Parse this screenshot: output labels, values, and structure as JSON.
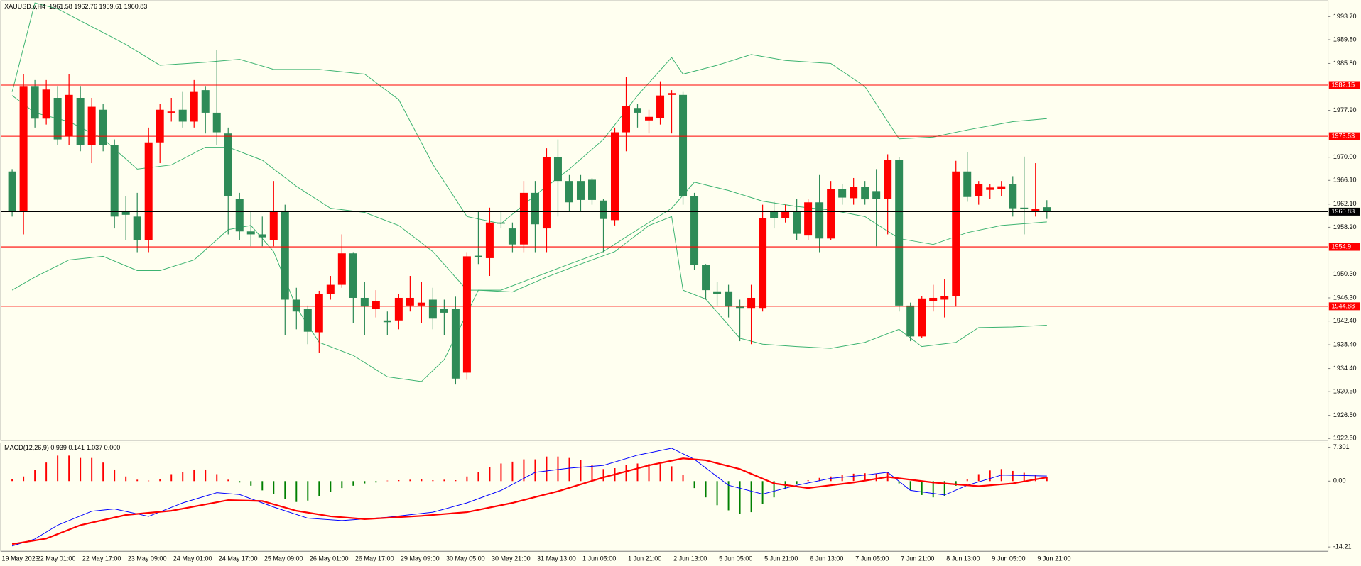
{
  "chart_data": [
    {
      "type": "candlestick",
      "label": "XAUUSD.v,H4  1961.58 1962.76 1959.61 1960.83",
      "categories": [
        "19 May 2023",
        null,
        null,
        "22 May 01:00",
        null,
        null,
        null,
        "22 May 17:00",
        null,
        null,
        null,
        "23 May 09:00",
        null,
        null,
        null,
        "24 May 01:00",
        null,
        null,
        null,
        "24 May 17:00",
        null,
        null,
        null,
        "25 May 09:00",
        null,
        null,
        null,
        "26 May 01:00",
        null,
        null,
        null,
        "26 May 17:00",
        null,
        null,
        null,
        "29 May 09:00",
        null,
        null,
        null,
        "30 May 05:00",
        null,
        null,
        null,
        "30 May 21:00",
        null,
        null,
        null,
        "31 May 13:00",
        null,
        null,
        null,
        "1 Jun 05:00",
        null,
        null,
        null,
        "1 Jun 21:00",
        null,
        null,
        null,
        "2 Jun 13:00",
        null,
        null,
        null,
        "5 Jun 05:00",
        null,
        null,
        null,
        "5 Jun 21:00",
        null,
        null,
        null,
        "6 Jun 13:00",
        null,
        null,
        null,
        "7 Jun 05:00",
        null,
        null,
        null,
        "7 Jun 21:00",
        null,
        null,
        null,
        "8 Jun 13:00",
        null,
        null,
        null,
        "9 Jun 05:00",
        null,
        null,
        null,
        "9 Jun 21:00"
      ],
      "open": [
        1967.6,
        1961,
        1982,
        1976.5,
        1980,
        1973.5,
        1980,
        1972,
        1978,
        1972,
        1960.8,
        1960,
        1956,
        1972.5,
        1977.5,
        1978,
        1976,
        1981.3,
        1977.5,
        1974,
        1963,
        1957.5,
        1957,
        1956,
        1961,
        1946,
        1944.5,
        1940.5,
        1947,
        1948.5,
        1953.8,
        1946.3,
        1944.5,
        1942.5,
        1942.5,
        1945,
        1945,
        1946,
        1944.5,
        1944.5,
        1933.7,
        1953.4,
        1953,
        1959,
        1958,
        1955.3,
        1964,
        1958,
        1970,
        1966,
        1966,
        1966.2,
        1962.7,
        1959.4,
        1974.2,
        1978.3,
        1976.2,
        1976.6,
        1980.5,
        1980.5,
        1963.4,
        1951.8,
        1947.4,
        1947.4,
        1944.8,
        1944.6,
        1944.6,
        1961,
        1959.7,
        1960.8,
        1956.8,
        1962.4,
        1956.3,
        1964.6,
        1963.1,
        1965,
        1964.3,
        1963,
        1969.5,
        1945,
        1939.8,
        1945.8,
        1946,
        1946.6,
        1967.6,
        1963.4,
        1964.5,
        1964.6,
        1965.5,
        1961.5,
        1960.9,
        1961.58
      ],
      "high": [
        1968,
        1984,
        1983,
        1983,
        1982,
        1984,
        1982,
        1980,
        1979,
        1973,
        1963.5,
        1964,
        1975,
        1979,
        1980,
        1981,
        1983,
        1982,
        1988,
        1975,
        1964,
        1961,
        1960,
        1966,
        1962,
        1948,
        1945,
        1947.5,
        1950,
        1957,
        1954,
        1949,
        1947.6,
        1944,
        1947,
        1950,
        1949,
        1948,
        1946,
        1946.5,
        1954,
        1961,
        1961.5,
        1961,
        1959,
        1966,
        1966,
        1971.5,
        1973,
        1967,
        1967,
        1966.5,
        1963,
        1975,
        1983.5,
        1979,
        1978,
        1982.8,
        1981.3,
        1981,
        1964,
        1952,
        1949,
        1948.5,
        1946,
        1948.5,
        1962,
        1962.5,
        1962,
        1963,
        1963,
        1967,
        1966,
        1965.5,
        1966.5,
        1966,
        1968,
        1970.5,
        1970,
        1945.5,
        1946.6,
        1948.5,
        1949.5,
        1969.4,
        1970.8,
        1966,
        1965.5,
        1966,
        1966.8,
        1970.1,
        1969,
        1962.76
      ],
      "low": [
        1960,
        1957,
        1975,
        1975.5,
        1972,
        1972,
        1971,
        1969,
        1971,
        1958,
        1956,
        1954,
        1954,
        1969,
        1976,
        1975,
        1975,
        1974,
        1972,
        1957,
        1956,
        1955,
        1955,
        1955,
        1940,
        1941,
        1938.5,
        1937,
        1946,
        1948,
        1942,
        1940,
        1943,
        1940,
        1941,
        1944,
        1942,
        1941,
        1940,
        1931.7,
        1932.5,
        1952,
        1950,
        1958,
        1954,
        1954,
        1954,
        1954,
        1960,
        1961,
        1961,
        1962,
        1954,
        1958.5,
        1971,
        1975,
        1974,
        1975.5,
        1974,
        1962,
        1951,
        1946,
        1945,
        1943,
        1939,
        1938.5,
        1944,
        1958,
        1959,
        1956,
        1956,
        1954,
        1956,
        1962,
        1962,
        1962,
        1955,
        1957,
        1944,
        1939,
        1939.5,
        1944,
        1943,
        1944.8,
        1962.5,
        1962,
        1963,
        1963.5,
        1960,
        1957,
        1960,
        1959.61
      ],
      "close": [
        1960.9,
        1982,
        1976.5,
        1981.4,
        1973,
        1980.5,
        1972,
        1978.5,
        1972,
        1960,
        1960.3,
        1956,
        1972.5,
        1978,
        1977.7,
        1976,
        1981,
        1977.5,
        1974.2,
        1963.5,
        1957.5,
        1957,
        1956.5,
        1961,
        1946,
        1944,
        1940.6,
        1947,
        1948.5,
        1953.8,
        1946.3,
        1944.8,
        1945.8,
        1942.2,
        1946.3,
        1946.3,
        1945.5,
        1942.8,
        1943.8,
        1932.7,
        1953.3,
        1953.2,
        1959,
        1958.8,
        1955.3,
        1964,
        1958.7,
        1970,
        1966,
        1962.4,
        1962.8,
        1962.8,
        1959.6,
        1974.2,
        1978.6,
        1977.5,
        1976.8,
        1980.4,
        1980.8,
        1963.4,
        1951.8,
        1947.6,
        1947,
        1944.8,
        1944.6,
        1946.3,
        1959.7,
        1959.7,
        1961,
        1957.1,
        1962.4,
        1956.3,
        1964.6,
        1963.2,
        1965,
        1962.9,
        1963,
        1969.5,
        1945,
        1939.8,
        1946.2,
        1946.3,
        1946.6,
        1967.6,
        1963.3,
        1965.5,
        1964.9,
        1965.1,
        1961.4,
        1961.3,
        1961.3,
        1960.83
      ],
      "up_color": "#ff0000",
      "down_color": "#2e8b57",
      "bands": [
        {
          "color": "#3cb371",
          "x": [
            0,
            2,
            4,
            7,
            10,
            13,
            17,
            20,
            23,
            27,
            31,
            34,
            37,
            40,
            43,
            46,
            49,
            52,
            55,
            58,
            59,
            62,
            65,
            68,
            72,
            75,
            78,
            81,
            84,
            88,
            91
          ],
          "values": [
            1981,
            1996,
            1995,
            1992,
            1989,
            1985.5,
            1986,
            1986.5,
            1984.8,
            1984.8,
            1984,
            1979.7,
            1968.8,
            1960,
            1958.8,
            1963.6,
            1968,
            1973,
            1980.4,
            1986.8,
            1984,
            1985.5,
            1987.3,
            1986.3,
            1985.8,
            1981.9,
            1973.1,
            1973.4,
            1974.6,
            1976,
            1976.5
          ]
        },
        {
          "color": "#3cb371",
          "x": [
            0,
            2,
            5,
            8,
            11,
            14,
            17,
            19,
            22,
            25,
            28,
            31,
            34,
            37,
            40,
            43,
            46,
            49,
            52,
            55,
            58,
            60,
            63,
            66,
            69,
            72,
            75,
            78,
            81,
            84,
            87,
            91
          ],
          "values": [
            1980.4,
            1977.5,
            1976,
            1973.1,
            1968,
            1968.7,
            1971.7,
            1971.7,
            1969.5,
            1965.1,
            1961.4,
            1960.7,
            1958.5,
            1954.1,
            1947.6,
            1947.6,
            1949.8,
            1952,
            1954.1,
            1957.8,
            1961.4,
            1965.8,
            1964.4,
            1962.6,
            1961.7,
            1961.1,
            1960,
            1956.3,
            1955.3,
            1957.3,
            1958.5,
            1959.1
          ]
        },
        {
          "color": "#3cb371",
          "x": [
            0,
            2,
            5,
            8,
            11,
            13,
            16,
            19,
            21,
            23,
            25,
            27,
            30,
            33,
            36,
            38,
            41,
            44,
            47,
            50,
            53,
            56,
            58,
            59,
            61,
            64,
            66,
            69,
            72,
            75,
            78,
            80,
            83,
            85,
            88,
            91
          ],
          "values": [
            1947.6,
            1949.8,
            1952.7,
            1953.3,
            1950.9,
            1950.9,
            1952.7,
            1957.8,
            1958.5,
            1954.1,
            1944.7,
            1938.8,
            1936.6,
            1933,
            1932.2,
            1935.9,
            1947.6,
            1947.3,
            1949.8,
            1952,
            1954.1,
            1958.5,
            1960,
            1947.6,
            1946.1,
            1939.5,
            1938.5,
            1938.1,
            1937.8,
            1938.8,
            1941,
            1938.1,
            1938.8,
            1941.3,
            1941.4,
            1941.7
          ]
        }
      ],
      "hlines": [
        {
          "value": 1982.15,
          "color": "#ff0000"
        },
        {
          "value": 1973.53,
          "color": "#ff0000"
        },
        {
          "value": 1954.9,
          "color": "#ff0000"
        },
        {
          "value": 1944.88,
          "color": "#ff0000"
        },
        {
          "value": 1960.83,
          "color": "#000000"
        }
      ],
      "ylim": [
        1922.3,
        1996.2
      ],
      "yticks": [
        {
          "value": 1993.7,
          "label": "1993.70"
        },
        {
          "value": 1989.8,
          "label": "1989.80"
        },
        {
          "value": 1985.8,
          "label": "1985.80"
        },
        {
          "value": 1977.9,
          "label": "1977.90"
        },
        {
          "value": 1970,
          "label": "1970.00"
        },
        {
          "value": 1966.1,
          "label": "1966.10"
        },
        {
          "value": 1962.1,
          "label": "1962.10"
        },
        {
          "value": 1958.2,
          "label": "1958.20"
        },
        {
          "value": 1950.3,
          "label": "1950.30"
        },
        {
          "value": 1946.3,
          "label": "1946.30"
        },
        {
          "value": 1942.4,
          "label": "1942.40"
        },
        {
          "value": 1938.4,
          "label": "1938.40"
        },
        {
          "value": 1934.4,
          "label": "1934.40"
        },
        {
          "value": 1930.5,
          "label": "1930.50"
        },
        {
          "value": 1926.5,
          "label": "1926.50"
        },
        {
          "value": 1922.6,
          "label": "1922.60"
        }
      ]
    },
    {
      "type": "macd",
      "label": "MACD(12,26,9) 0.939 0.141 1.037 0.000",
      "histogram": [
        0.5,
        1,
        2.5,
        4,
        5.5,
        5.5,
        5,
        5,
        4,
        2.5,
        1,
        0.3,
        0.1,
        0.5,
        1.5,
        2,
        2.5,
        2.5,
        1.5,
        0.3,
        -0.3,
        -1,
        -2,
        -2.8,
        -3.8,
        -4.5,
        -4.2,
        -3.2,
        -2.3,
        -1.5,
        -1,
        -0.5,
        -0.3,
        0.1,
        0.2,
        0.3,
        0.4,
        0.2,
        0.3,
        0.2,
        1,
        2,
        3,
        3.8,
        4.2,
        4.7,
        4.7,
        5.3,
        5.3,
        5,
        4.5,
        3.5,
        2.6,
        2.8,
        3.5,
        3.8,
        3.7,
        3.7,
        3.2,
        1.3,
        -1.5,
        -3.5,
        -5.2,
        -6.3,
        -7,
        -6.7,
        -5,
        -3.5,
        -1.8,
        -0.7,
        0.2,
        0.7,
        1,
        1.3,
        1.6,
        1.7,
        1.6,
        1.8,
        -0.5,
        -2,
        -3,
        -3.5,
        -3.3,
        -1,
        0.5,
        1.5,
        2.3,
        2.6,
        2.2,
        1.8,
        1.4,
        0.9
      ],
      "up_color": "#ff0000",
      "down_color": "#008000",
      "series": [
        {
          "color": "#0000ff",
          "x": [
            0,
            2,
            4,
            7,
            9,
            12,
            15,
            18,
            20,
            23,
            26,
            29,
            33,
            37,
            40,
            43,
            46,
            49,
            52,
            55,
            58,
            60,
            63,
            66,
            69,
            72,
            75,
            77,
            79,
            82,
            84,
            87,
            91
          ],
          "values": [
            -14,
            -12.5,
            -9.5,
            -6.5,
            -6,
            -7.6,
            -4.7,
            -2.5,
            -2.9,
            -5.6,
            -8,
            -8.5,
            -7.8,
            -6.7,
            -4.7,
            -2,
            1.9,
            2.8,
            3.4,
            5.6,
            7.1,
            4.7,
            -0.9,
            -2.8,
            -0.9,
            0.6,
            1.3,
            1.9,
            -2,
            -3,
            -0.9,
            1.3,
            1.1
          ]
        },
        {
          "color": "#ff0000",
          "x": [
            0,
            3,
            6,
            10,
            14,
            19,
            22,
            25,
            28,
            31,
            36,
            40,
            44,
            48,
            52,
            56,
            59,
            61,
            64,
            67,
            70,
            74,
            77,
            81,
            85,
            88,
            91
          ],
          "values": [
            -13.6,
            -12.4,
            -9.5,
            -7.3,
            -6.4,
            -4.1,
            -4.3,
            -6.4,
            -7.6,
            -8.2,
            -7.5,
            -6.7,
            -4.7,
            -2.2,
            0.8,
            3.4,
            4.9,
            4.5,
            2.6,
            -0.5,
            -1.5,
            -0.3,
            0.9,
            -0.3,
            -1.1,
            -0.5,
            0.8
          ]
        }
      ],
      "ylim": [
        -15.14,
        8.24
      ],
      "yticks": [
        7.301,
        {
          "value": 0,
          "label": "0.00"
        },
        -14.21
      ]
    }
  ]
}
